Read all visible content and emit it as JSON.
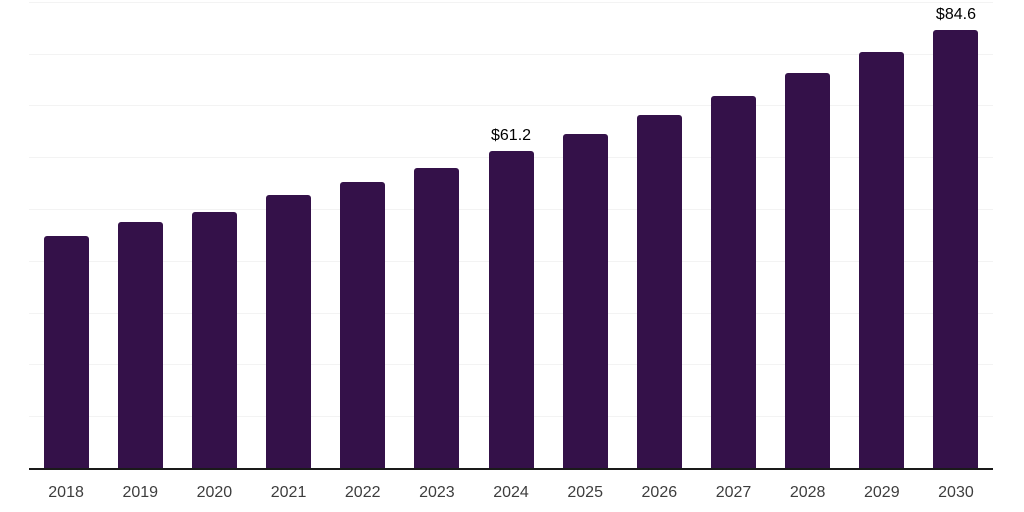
{
  "chart_data": {
    "type": "bar",
    "title": "",
    "xlabel": "",
    "ylabel": "",
    "categories": [
      "2018",
      "2019",
      "2020",
      "2021",
      "2022",
      "2023",
      "2024",
      "2025",
      "2026",
      "2027",
      "2028",
      "2029",
      "2030"
    ],
    "values": [
      44.8,
      47.4,
      49.5,
      52.8,
      55.3,
      58.0,
      61.2,
      64.5,
      68.1,
      71.9,
      76.3,
      80.4,
      84.6
    ],
    "value_labels": [
      "",
      "",
      "",
      "",
      "",
      "",
      "$61.2",
      "",
      "",
      "",
      "",
      "",
      "$84.6"
    ],
    "ylim": [
      0,
      90
    ],
    "y_axis_tick_labels_visible": false,
    "gridlines": {
      "show": true,
      "interval": 10,
      "color": "#f3f3f3"
    },
    "legend_position": "none",
    "colors": {
      "bar": "#341149",
      "axis_line": "#1a1a1a",
      "tick_label": "#3d3d3d",
      "value_label": "#000000",
      "background": "#ffffff"
    }
  }
}
